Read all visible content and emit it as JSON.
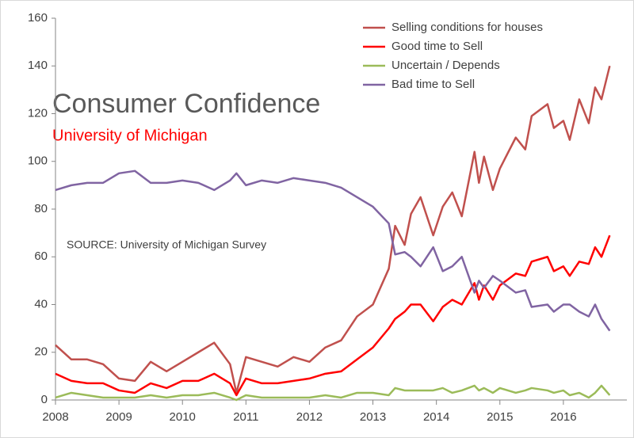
{
  "chart_data": {
    "type": "line",
    "title": "Consumer Confidence",
    "subtitle": "University of Michigan",
    "annotation": "SOURCE: University of Michigan Survey",
    "x": [
      2008,
      2008.25,
      2008.5,
      2008.75,
      2009,
      2009.25,
      2009.5,
      2009.75,
      2010,
      2010.25,
      2010.5,
      2010.75,
      2010.85,
      2011,
      2011.25,
      2011.5,
      2011.75,
      2012,
      2012.25,
      2012.5,
      2012.75,
      2013,
      2013.25,
      2013.35,
      2013.5,
      2013.6,
      2013.75,
      2013.95,
      2014.1,
      2014.25,
      2014.4,
      2014.6,
      2014.67,
      2014.75,
      2014.89,
      2015,
      2015.25,
      2015.4,
      2015.5,
      2015.75,
      2015.85,
      2016,
      2016.1,
      2016.25,
      2016.4,
      2016.5,
      2016.6,
      2016.73
    ],
    "series": [
      {
        "name": "Selling conditions for houses",
        "color": "#c0504d",
        "values": [
          23,
          17,
          17,
          15,
          9,
          8,
          16,
          12,
          16,
          20,
          24,
          15,
          3,
          18,
          16,
          14,
          18,
          16,
          22,
          25,
          35,
          40,
          55,
          73,
          65,
          78,
          85,
          69,
          81,
          87,
          77,
          104,
          91,
          102,
          88,
          97,
          110,
          105,
          119,
          124,
          114,
          117,
          109,
          126,
          116,
          131,
          126,
          140
        ]
      },
      {
        "name": "Good time to Sell",
        "color": "#ff0000",
        "values": [
          11,
          8,
          7,
          7,
          4,
          3,
          7,
          5,
          8,
          8,
          11,
          7,
          2,
          9,
          7,
          7,
          8,
          9,
          11,
          12,
          17,
          22,
          30,
          34,
          37,
          40,
          40,
          33,
          39,
          42,
          40,
          49,
          42,
          48,
          42,
          48,
          53,
          52,
          58,
          60,
          54,
          56,
          52,
          58,
          57,
          64,
          60,
          69
        ]
      },
      {
        "name": "Uncertain / Depends",
        "color": "#9bbb59",
        "values": [
          1,
          3,
          2,
          1,
          1,
          1,
          2,
          1,
          2,
          2,
          3,
          1,
          0,
          2,
          1,
          1,
          1,
          1,
          2,
          1,
          3,
          3,
          2,
          5,
          4,
          4,
          4,
          4,
          5,
          3,
          4,
          6,
          4,
          5,
          3,
          5,
          3,
          4,
          5,
          4,
          3,
          4,
          2,
          3,
          1,
          3,
          6,
          2
        ]
      },
      {
        "name": "Bad time to Sell",
        "color": "#8064a2",
        "values": [
          88,
          90,
          91,
          91,
          95,
          96,
          91,
          91,
          92,
          91,
          88,
          92,
          95,
          90,
          92,
          91,
          93,
          92,
          91,
          89,
          85,
          81,
          74,
          61,
          62,
          60,
          56,
          64,
          54,
          56,
          60,
          45,
          50,
          47,
          52,
          50,
          45,
          46,
          39,
          40,
          37,
          40,
          40,
          37,
          35,
          40,
          34,
          29
        ]
      }
    ],
    "xlim": [
      2008,
      2017
    ],
    "xticks": [
      2008,
      2009,
      2010,
      2011,
      2012,
      2013,
      2014,
      2015,
      2016
    ],
    "ylim": [
      0,
      160
    ],
    "yticks": [
      0,
      20,
      40,
      60,
      80,
      100,
      120,
      140,
      160
    ],
    "grid": false,
    "legend": "top-right"
  }
}
